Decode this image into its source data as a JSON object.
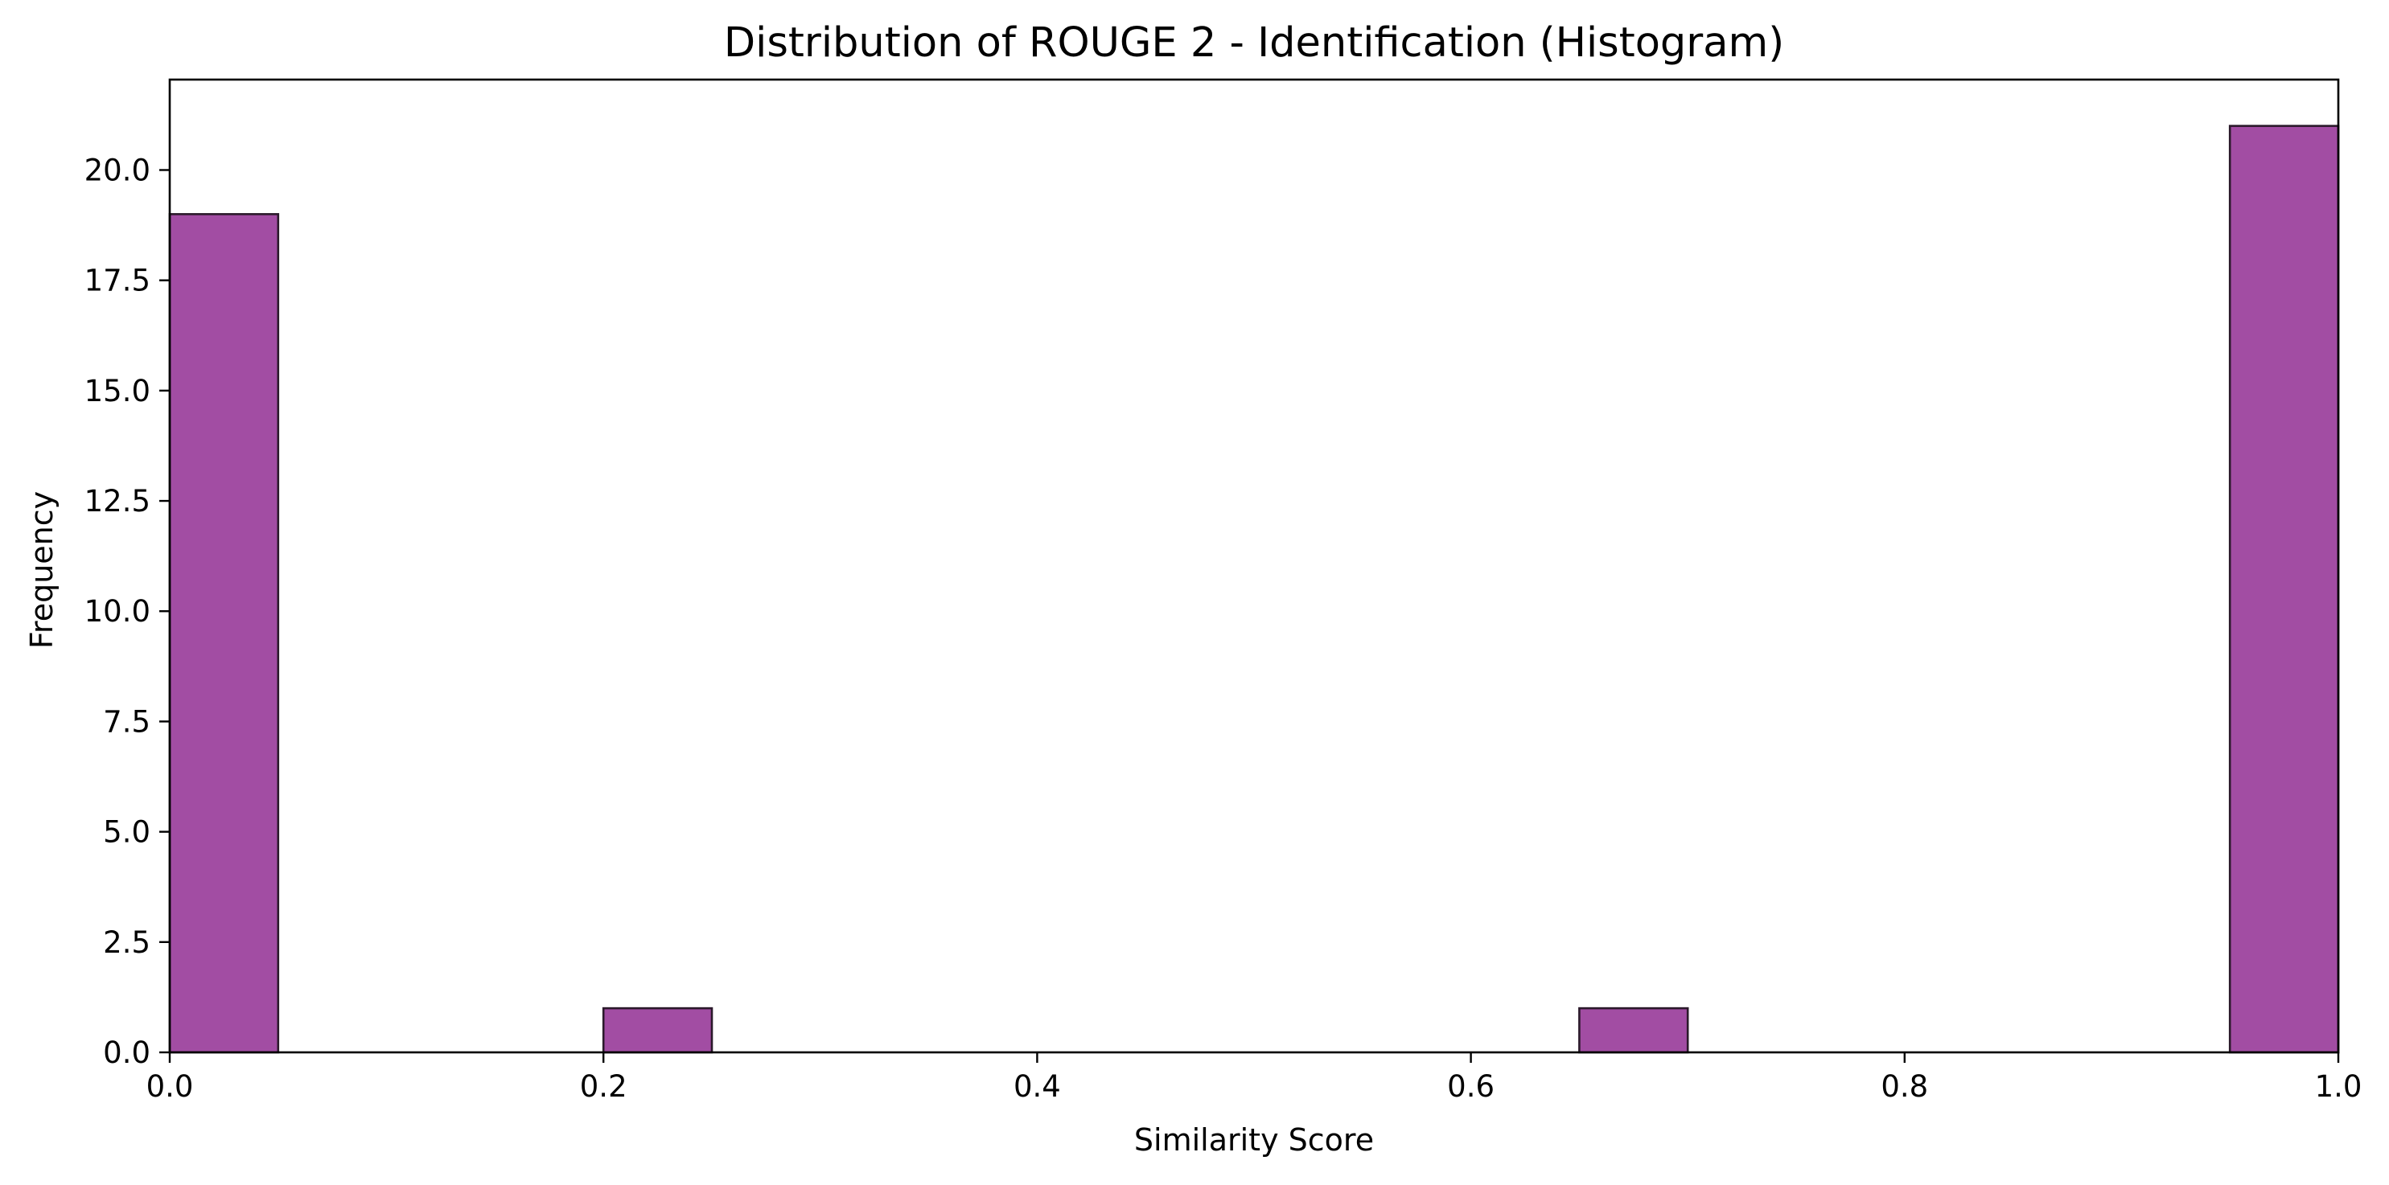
{
  "chart_data": {
    "type": "bar",
    "title": "Distribution of ROUGE 2 - Identification (Histogram)",
    "xlabel": "Similarity Score",
    "ylabel": "Frequency",
    "xlim": [
      0.0,
      1.0
    ],
    "ylim": [
      0,
      22.05
    ],
    "xticks": [
      "0.0",
      "0.2",
      "0.4",
      "0.6",
      "0.8",
      "1.0"
    ],
    "yticks": [
      "0.0",
      "2.5",
      "5.0",
      "7.5",
      "10.0",
      "12.5",
      "15.0",
      "17.5",
      "20.0"
    ],
    "bin_width": 0.05,
    "bins": [
      {
        "x_start": 0.0,
        "x_end": 0.05,
        "count": 19
      },
      {
        "x_start": 0.2,
        "x_end": 0.25,
        "count": 1
      },
      {
        "x_start": 0.65,
        "x_end": 0.7,
        "count": 1
      },
      {
        "x_start": 0.95,
        "x_end": 1.0,
        "count": 21
      }
    ],
    "bar_color": "#a24da3",
    "bar_edge_color": "#2b1a2b",
    "grid": false,
    "legend": "none"
  }
}
